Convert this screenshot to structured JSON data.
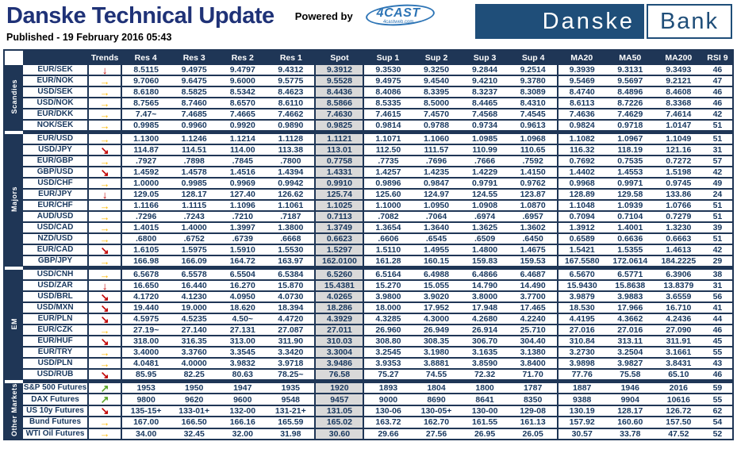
{
  "header": {
    "title": "Danske Technical Update",
    "powered_by": "Powered by",
    "vendor": "4CAST",
    "vendor_sub": "4castweb.com",
    "published": "Published - 19 February 2016 05:43",
    "bank_logo_left": "Danske",
    "bank_logo_right": "Bank"
  },
  "colors": {
    "navy": "#1F3656",
    "spot_bg": "#D9D9D9",
    "trend_down_red": "#C00000",
    "trend_flat_gold": "#FFB900",
    "trend_up_green": "#5BA529",
    "bank_logo_blue": "#1F4E79",
    "vendor_blue": "#2E75B6",
    "title_navy": "#1F3277"
  },
  "trend_glyphs": {
    "down": "↓",
    "flat": "→",
    "down-right": "↘",
    "up-right": "↗"
  },
  "table": {
    "columns": [
      "Trends",
      "Res 4",
      "Res 3",
      "Res 2",
      "Res 1",
      "Spot",
      "Sup 1",
      "Sup 2",
      "Sup 3",
      "Sup 4",
      "MA20",
      "MA50",
      "MA200",
      "RSI 9"
    ],
    "groups": [
      {
        "label": "Scandies",
        "rows": [
          {
            "name": "EUR/SEK",
            "trend": "down",
            "values": [
              "8.5115",
              "9.4975",
              "9.4797",
              "9.4312",
              "9.3912",
              "9.3530",
              "9.3250",
              "9.2844",
              "9.2514",
              "9.3939",
              "9.3131",
              "9.3493",
              "46"
            ]
          },
          {
            "name": "EUR/NOK",
            "trend": "flat",
            "values": [
              "9.7060",
              "9.6475",
              "9.6000",
              "9.5775",
              "9.5528",
              "9.4975",
              "9.4540",
              "9.4210",
              "9.3780",
              "9.5469",
              "9.5697",
              "9.2121",
              "47"
            ]
          },
          {
            "name": "USD/SEK",
            "trend": "flat",
            "values": [
              "8.6180",
              "8.5825",
              "8.5342",
              "8.4623",
              "8.4436",
              "8.4086",
              "8.3395",
              "8.3237",
              "8.3089",
              "8.4740",
              "8.4896",
              "8.4608",
              "46"
            ]
          },
          {
            "name": "USD/NOK",
            "trend": "flat",
            "values": [
              "8.7565",
              "8.7460",
              "8.6570",
              "8.6110",
              "8.5866",
              "8.5335",
              "8.5000",
              "8.4465",
              "8.4310",
              "8.6113",
              "8.7226",
              "8.3368",
              "46"
            ]
          },
          {
            "name": "EUR/DKK",
            "trend": "flat",
            "values": [
              "7.47~",
              "7.4685",
              "7.4665",
              "7.4662",
              "7.4630",
              "7.4615",
              "7.4570",
              "7.4568",
              "7.4545",
              "7.4636",
              "7.4629",
              "7.4614",
              "42"
            ]
          },
          {
            "name": "NOK/SEK",
            "trend": "flat",
            "values": [
              "0.9985",
              "0.9960",
              "0.9920",
              "0.9890",
              "0.9825",
              "0.9814",
              "0.9788",
              "0.9734",
              "0.9613",
              "0.9824",
              "0.9718",
              "1.0147",
              "51"
            ]
          }
        ]
      },
      {
        "label": "Majors",
        "rows": [
          {
            "name": "EUR/USD",
            "trend": "flat",
            "values": [
              "1.1300",
              "1.1246",
              "1.1214",
              "1.1128",
              "1.1121",
              "1.1071",
              "1.1060",
              "1.0985",
              "1.0968",
              "1.1082",
              "1.0967",
              "1.1049",
              "51"
            ]
          },
          {
            "name": "USD/JPY",
            "trend": "down-right",
            "values": [
              "114.87",
              "114.51",
              "114.00",
              "113.38",
              "113.01",
              "112.50",
              "111.57",
              "110.99",
              "110.65",
              "116.32",
              "118.19",
              "121.16",
              "31"
            ]
          },
          {
            "name": "EUR/GBP",
            "trend": "flat",
            "values": [
              ".7927",
              ".7898",
              ".7845",
              ".7800",
              "0.7758",
              ".7735",
              ".7696",
              ".7666",
              ".7592",
              "0.7692",
              "0.7535",
              "0.7272",
              "57"
            ]
          },
          {
            "name": "GBP/USD",
            "trend": "down-right",
            "values": [
              "1.4592",
              "1.4578",
              "1.4516",
              "1.4394",
              "1.4331",
              "1.4257",
              "1.4235",
              "1.4229",
              "1.4150",
              "1.4402",
              "1.4553",
              "1.5198",
              "42"
            ]
          },
          {
            "name": "USD/CHF",
            "trend": "flat",
            "values": [
              "1.0000",
              "0.9985",
              "0.9969",
              "0.9942",
              "0.9910",
              "0.9896",
              "0.9847",
              "0.9791",
              "0.9762",
              "0.9968",
              "0.9971",
              "0.9745",
              "49"
            ]
          },
          {
            "name": "EUR/JPY",
            "trend": "down",
            "values": [
              "129.05",
              "128.17",
              "127.40",
              "126.62",
              "125.74",
              "125.60",
              "124.97",
              "124.55",
              "123.87",
              "128.89",
              "129.58",
              "133.86",
              "24"
            ]
          },
          {
            "name": "EUR/CHF",
            "trend": "flat",
            "values": [
              "1.1166",
              "1.1115",
              "1.1096",
              "1.1061",
              "1.1025",
              "1.1000",
              "1.0950",
              "1.0908",
              "1.0870",
              "1.1048",
              "1.0939",
              "1.0766",
              "51"
            ]
          },
          {
            "name": "AUD/USD",
            "trend": "flat",
            "values": [
              ".7296",
              ".7243",
              ".7210",
              ".7187",
              "0.7113",
              ".7082",
              ".7064",
              ".6974",
              ".6957",
              "0.7094",
              "0.7104",
              "0.7279",
              "51"
            ]
          },
          {
            "name": "USD/CAD",
            "trend": "flat",
            "values": [
              "1.4015",
              "1.4000",
              "1.3997",
              "1.3800",
              "1.3749",
              "1.3654",
              "1.3640",
              "1.3625",
              "1.3602",
              "1.3912",
              "1.4001",
              "1.3230",
              "39"
            ]
          },
          {
            "name": "NZD/USD",
            "trend": "flat",
            "values": [
              ".6800",
              ".6752",
              ".6739",
              ".6668",
              "0.6623",
              ".6606",
              ".6545",
              ".6509",
              ".6450",
              "0.6589",
              "0.6636",
              "0.6663",
              "51"
            ]
          },
          {
            "name": "EUR/CAD",
            "trend": "down-right",
            "values": [
              "1.6105",
              "1.5975",
              "1.5910",
              "1.5530",
              "1.5297",
              "1.5110",
              "1.4955",
              "1.4800",
              "1.4675",
              "1.5421",
              "1.5355",
              "1.4613",
              "42"
            ]
          },
          {
            "name": "GBP/JPY",
            "trend": "flat",
            "values": [
              "166.98",
              "166.09",
              "164.72",
              "163.97",
              "162.0100",
              "161.28",
              "160.15",
              "159.83",
              "159.53",
              "167.5580",
              "172.0614",
              "184.2225",
              "29"
            ]
          }
        ]
      },
      {
        "label": "EM",
        "rows": [
          {
            "name": "USD/CNH",
            "trend": "flat",
            "values": [
              "6.5678",
              "6.5578",
              "6.5504",
              "6.5384",
              "6.5260",
              "6.5164",
              "6.4988",
              "6.4866",
              "6.4687",
              "6.5670",
              "6.5771",
              "6.3906",
              "38"
            ]
          },
          {
            "name": "USD/ZAR",
            "trend": "down",
            "values": [
              "16.650",
              "16.440",
              "16.270",
              "15.870",
              "15.4381",
              "15.270",
              "15.055",
              "14.790",
              "14.490",
              "15.9430",
              "15.8638",
              "13.8379",
              "31"
            ]
          },
          {
            "name": "USD/BRL",
            "trend": "down-right",
            "values": [
              "4.1720",
              "4.1230",
              "4.0950",
              "4.0730",
              "4.0265",
              "3.9800",
              "3.9020",
              "3.8000",
              "3.7700",
              "3.9879",
              "3.9883",
              "3.6559",
              "56"
            ]
          },
          {
            "name": "USD/MXN",
            "trend": "down-right",
            "values": [
              "19.440",
              "19.000",
              "18.620",
              "18.394",
              "18.286",
              "18.000",
              "17.952",
              "17.948",
              "17.465",
              "18.530",
              "17.966",
              "16.710",
              "41"
            ]
          },
          {
            "name": "EUR/PLN",
            "trend": "down-right",
            "values": [
              "4.5975",
              "4.5235",
              "4.50~",
              "4.4720",
              "4.3929",
              "4.3285",
              "4.3000",
              "4.2680",
              "4.2240",
              "4.4195",
              "4.3662",
              "4.2436",
              "44"
            ]
          },
          {
            "name": "EUR/CZK",
            "trend": "flat",
            "values": [
              "27.19~",
              "27.140",
              "27.131",
              "27.087",
              "27.011",
              "26.960",
              "26.949",
              "26.914",
              "25.710",
              "27.016",
              "27.016",
              "27.090",
              "46"
            ]
          },
          {
            "name": "EUR/HUF",
            "trend": "down-right",
            "values": [
              "318.00",
              "316.35",
              "313.00",
              "311.90",
              "310.03",
              "308.80",
              "308.35",
              "306.70",
              "304.40",
              "310.84",
              "313.11",
              "311.91",
              "45"
            ]
          },
          {
            "name": "EUR/TRY",
            "trend": "flat",
            "values": [
              "3.4000",
              "3.3760",
              "3.3545",
              "3.3420",
              "3.3004",
              "3.2545",
              "3.1980",
              "3.1635",
              "3.1380",
              "3.2730",
              "3.2504",
              "3.1661",
              "55"
            ]
          },
          {
            "name": "USD/PLN",
            "trend": "flat",
            "values": [
              "4.0481",
              "4.0000",
              "3.9832",
              "3.9718",
              "3.9486",
              "3.9353",
              "3.8881",
              "3.8590",
              "3.8400",
              "3.9898",
              "3.9827",
              "3.8431",
              "43"
            ]
          },
          {
            "name": "USD/RUB",
            "trend": "down-right",
            "values": [
              "85.95",
              "82.25",
              "80.63",
              "78.25~",
              "76.58",
              "75.27",
              "74.55",
              "72.32",
              "71.70",
              "77.76",
              "75.58",
              "65.10",
              "46"
            ]
          }
        ]
      },
      {
        "label": "Other Markets",
        "rows": [
          {
            "name": "S&P 500 Futures",
            "trend": "up-right",
            "values": [
              "1953",
              "1950",
              "1947",
              "1935",
              "1920",
              "1893",
              "1804",
              "1800",
              "1787",
              "1887",
              "1946",
              "2016",
              "59"
            ]
          },
          {
            "name": "DAX Futures",
            "trend": "up-right",
            "values": [
              "9800",
              "9620",
              "9600",
              "9548",
              "9457",
              "9000",
              "8690",
              "8641",
              "8350",
              "9388",
              "9904",
              "10616",
              "55"
            ]
          },
          {
            "name": "US 10y Futures",
            "trend": "down-right",
            "values": [
              "135-15+",
              "133-01+",
              "132-00",
              "131-21+",
              "131.05",
              "130-06",
              "130-05+",
              "130-00",
              "129-08",
              "130.19",
              "128.17",
              "126.72",
              "62"
            ]
          },
          {
            "name": "Bund Futures",
            "trend": "flat",
            "values": [
              "167.00",
              "166.50",
              "166.16",
              "165.59",
              "165.02",
              "163.72",
              "162.70",
              "161.55",
              "161.13",
              "157.92",
              "160.60",
              "157.50",
              "54"
            ]
          },
          {
            "name": "WTI Oil Futures",
            "trend": "flat",
            "values": [
              "34.00",
              "32.45",
              "32.00",
              "31.98",
              "30.60",
              "29.66",
              "27.56",
              "26.95",
              "26.05",
              "30.57",
              "33.78",
              "47.52",
              "52"
            ]
          }
        ]
      }
    ]
  }
}
